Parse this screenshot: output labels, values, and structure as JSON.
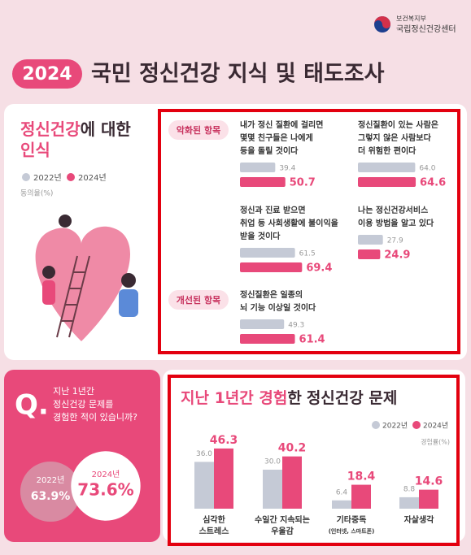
{
  "header": {
    "ministry": "보건복지부",
    "center": "국립정신건강센터",
    "year": "2024",
    "title": "국민 정신건강 지식 및 태도조사"
  },
  "perception": {
    "title_parts": [
      "정신건강",
      "에 대한",
      "인식"
    ]
  },
  "question": {
    "label": "Q.",
    "lines": [
      "지난 1년간",
      "정신건강 문제를",
      "경험한 적이 있습니까?"
    ]
  },
  "chart_data": [
    {
      "type": "hbar-groups",
      "unit": "동의율(%)",
      "series": [
        {
          "name": "2022년",
          "color": "#c5cad6"
        },
        {
          "name": "2024년",
          "color": "#e8497a"
        }
      ],
      "groups": [
        {
          "label": "악화된 항목",
          "categories": [
            [
              "내가 정신 질환에 걸리면",
              "몇몇 친구들은 나에게",
              "등을 돌릴 것이다"
            ],
            [
              "정신질환이 있는 사람은",
              "그렇지 않은 사람보다",
              "더 위험한 편이다"
            ],
            [
              "정신과 진료 받으면",
              "취업 등 사회생활에 불이익을",
              "받을 것이다"
            ],
            [
              "나는 정신건강서비스",
              "이용 방법을 알고 있다"
            ]
          ],
          "values": [
            [
              39.4,
              64.0,
              61.5,
              27.9
            ],
            [
              50.7,
              64.6,
              69.4,
              24.9
            ]
          ],
          "value_labels": [
            [
              "39.4",
              "64.0",
              "61.5",
              "27.9"
            ],
            [
              "50.7",
              "64.6",
              "69.4",
              "24.9"
            ]
          ]
        },
        {
          "label": "개선된 항목",
          "categories": [
            [
              "정신질환은 일종의",
              "뇌 기능 이상일 것이다"
            ]
          ],
          "values": [
            [
              49.3
            ],
            [
              61.4
            ]
          ],
          "value_labels": [
            [
              "49.3"
            ],
            [
              "61.4"
            ]
          ]
        }
      ]
    },
    {
      "type": "bar",
      "title_parts": [
        "지난 1년간 경험",
        "한",
        "정신건강 문제"
      ],
      "unit": "경험률(%)",
      "categories": [
        [
          "심각한",
          "스트레스"
        ],
        [
          "수일간 지속되는",
          "우울감"
        ],
        [
          "기타중독",
          "(인터넷, 스마트폰)"
        ],
        [
          "자살생각"
        ]
      ],
      "series": [
        {
          "name": "2022년",
          "color": "#c5cad6",
          "values": [
            36.0,
            30.0,
            6.4,
            8.8
          ],
          "value_labels": [
            "36.0",
            "30.0",
            "6.4",
            "8.8"
          ]
        },
        {
          "name": "2024년",
          "color": "#e8497a",
          "values": [
            46.3,
            40.2,
            18.4,
            14.6
          ],
          "value_labels": [
            "46.3",
            "40.2",
            "18.4",
            "14.6"
          ]
        }
      ]
    },
    {
      "type": "circles",
      "categories": [
        "2022년",
        "2024년"
      ],
      "values": [
        63.9,
        73.6
      ],
      "value_labels": [
        "63.9%",
        "73.6%"
      ],
      "colors": [
        "#d98aa2",
        "#ffffff"
      ]
    }
  ]
}
